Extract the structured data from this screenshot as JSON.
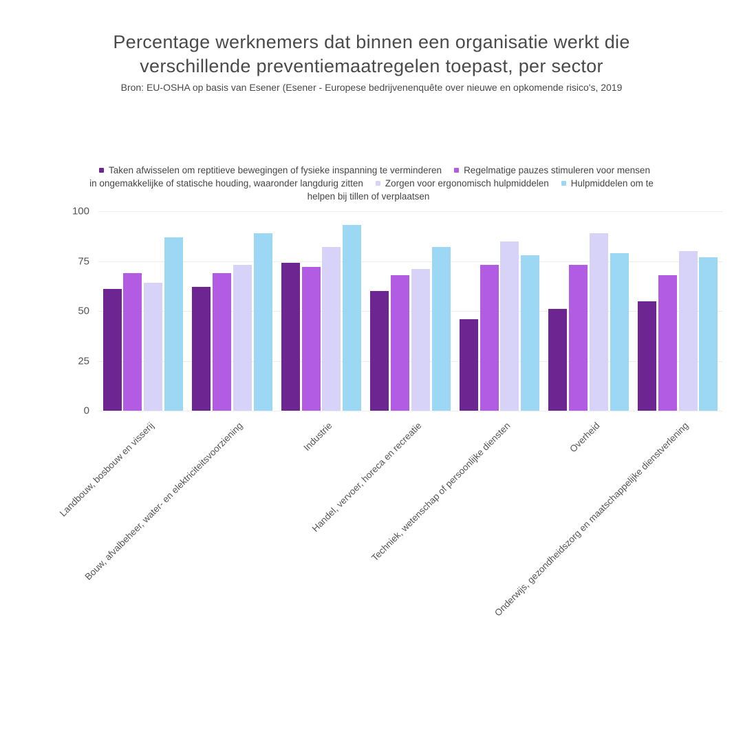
{
  "header": {
    "title_line1": "Percentage werknemers dat binnen een organisatie werkt die",
    "title_line2": "verschillende preventiemaatregelen toepast, per sector",
    "subtitle": "Bron: EU-OSHA op basis van Esener (Esener - Europese bedrijvenenquête over nieuwe en opkomende risico's, 2019"
  },
  "colors": {
    "background": "#ffffff",
    "title_text": "#4a4a4a",
    "legend_text": "#454545",
    "axis_text": "#555555",
    "gridline": "#ededed"
  },
  "chart_data": {
    "type": "bar",
    "title": "Percentage werknemers dat binnen een organisatie werkt die verschillende preventiemaatregelen toepast, per sector",
    "subtitle": "Bron: EU-OSHA op basis van Esener (Esener - Europese bedrijvenenquête over nieuwe en opkomende risico's, 2019",
    "categories": [
      "Landbouw, bosbouw en visserij",
      "Bouw, afvalbeheer, water- en elektriciteitsvoorziening",
      "Industrie",
      "Handel, vervoer, horeca en recreatie",
      "Techniek, wetenschap of persoonlijke diensten",
      "Overheid",
      "Onderwijs, gezondheidszorg en maatschappelijke dienstverlening"
    ],
    "series": [
      {
        "name": "Taken afwisselen om reptitieve bewegingen of fysieke inspanning te verminderen",
        "color": "#6c2591",
        "values": [
          61,
          62,
          74,
          60,
          46,
          51,
          55
        ]
      },
      {
        "name": "Regelmatige pauzes stimuleren voor mensen in ongemakkelijke of statische houding, waaronder langdurig zitten",
        "color": "#b15ce2",
        "values": [
          69,
          69,
          72,
          68,
          73,
          73,
          68
        ]
      },
      {
        "name": "Zorgen voor ergonomisch hulpmiddelen",
        "color": "#d7d2f7",
        "values": [
          64,
          73,
          82,
          71,
          85,
          89,
          80
        ]
      },
      {
        "name": "Hulpmiddelen om te helpen bij tillen of verplaatsen",
        "color": "#9cd7f3",
        "values": [
          87,
          89,
          93,
          82,
          78,
          79,
          77
        ]
      }
    ],
    "xlabel": "",
    "ylabel": "",
    "y_axis": {
      "ticks": [
        0,
        25,
        50,
        75,
        100
      ],
      "range": [
        0,
        100
      ]
    },
    "grid": "horizontal",
    "legend_position": "top-center"
  }
}
